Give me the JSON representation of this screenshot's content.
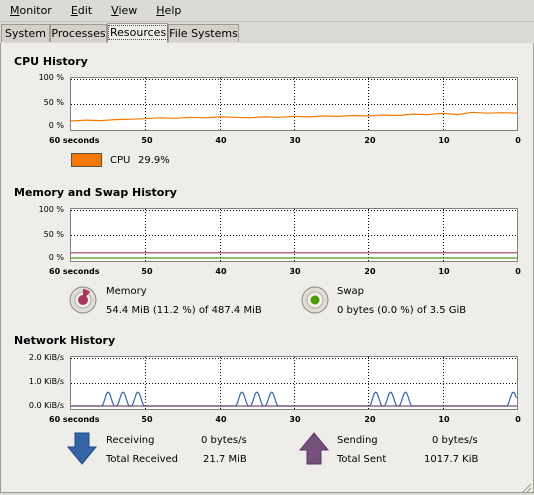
{
  "menubar": {
    "items": [
      "Monitor",
      "Edit",
      "View",
      "Help"
    ]
  },
  "tabs": [
    {
      "label": "System",
      "active": false
    },
    {
      "label": "Processes",
      "active": false
    },
    {
      "label": "Resources",
      "active": true
    },
    {
      "label": "File Systems",
      "active": false
    }
  ],
  "cpu": {
    "title": "CPU History",
    "y_ticks": [
      "100 %",
      "50 %",
      "0 %"
    ],
    "x_ticks": [
      "60 seconds",
      "50",
      "40",
      "30",
      "20",
      "10",
      "0"
    ],
    "legend": {
      "name": "CPU",
      "value": "29.9%",
      "color": "#f57900"
    }
  },
  "memory": {
    "title": "Memory and Swap History",
    "y_ticks": [
      "100 %",
      "50 %",
      "0 %"
    ],
    "x_ticks": [
      "60 seconds",
      "50",
      "40",
      "30",
      "20",
      "10",
      "0"
    ],
    "memory_label": "Memory",
    "memory_value": "54.4 MiB (11.2 %) of 487.4 MiB",
    "memory_color": "#a8355d",
    "swap_label": "Swap",
    "swap_value": "0 bytes (0.0 %) of 3.5 GiB",
    "swap_color": "#4e9a06"
  },
  "network": {
    "title": "Network History",
    "y_ticks": [
      "2.0 KiB/s",
      "1.0 KiB/s",
      "0.0 KiB/s"
    ],
    "x_ticks": [
      "60 seconds",
      "50",
      "40",
      "30",
      "20",
      "10",
      "0"
    ],
    "receiving_label": "Receiving",
    "receiving_value": "0 bytes/s",
    "total_received_label": "Total Received",
    "total_received_value": "21.7 MiB",
    "receiving_color": "#3465a4",
    "sending_label": "Sending",
    "sending_value": "0 bytes/s",
    "total_sent_label": "Total Sent",
    "total_sent_value": "1017.7 KiB",
    "sending_color": "#75507b"
  },
  "chart_data": [
    {
      "type": "line",
      "title": "CPU History",
      "xlabel": "",
      "ylabel": "",
      "x": [
        60,
        58,
        56,
        54,
        52,
        50,
        48,
        46,
        44,
        42,
        40,
        38,
        36,
        34,
        32,
        30,
        28,
        26,
        24,
        22,
        20,
        18,
        16,
        14,
        12,
        10,
        8,
        6,
        4,
        2,
        0
      ],
      "xlim": [
        60,
        0
      ],
      "ylim": [
        0,
        100
      ],
      "series": [
        {
          "name": "CPU",
          "color": "#f57900",
          "values": [
            13,
            15,
            14,
            16,
            17,
            18,
            20,
            19,
            21,
            20,
            22,
            21,
            20,
            22,
            21,
            23,
            22,
            24,
            23,
            25,
            24,
            26,
            25,
            28,
            27,
            30,
            27,
            32,
            30,
            31,
            29.9
          ]
        }
      ]
    },
    {
      "type": "line",
      "title": "Memory and Swap History",
      "xlim": [
        60,
        0
      ],
      "ylim": [
        0,
        100
      ],
      "series": [
        {
          "name": "Memory",
          "color": "#a8355d",
          "values": [
            11.2,
            11.2
          ]
        },
        {
          "name": "Swap",
          "color": "#4e9a06",
          "values": [
            0,
            0
          ]
        }
      ],
      "x": [
        60,
        0
      ]
    },
    {
      "type": "line",
      "title": "Network History",
      "xlim": [
        60,
        0
      ],
      "ylim": [
        0,
        2.0
      ],
      "series": [
        {
          "name": "Receiving",
          "color": "#3465a4",
          "peaks_at_seconds": [
            55,
            53,
            51,
            37,
            35,
            33,
            19,
            17,
            15,
            0.5
          ],
          "peak_value": 0.6
        },
        {
          "name": "Sending",
          "color": "#75507b",
          "values": [
            0,
            0
          ]
        }
      ]
    }
  ]
}
